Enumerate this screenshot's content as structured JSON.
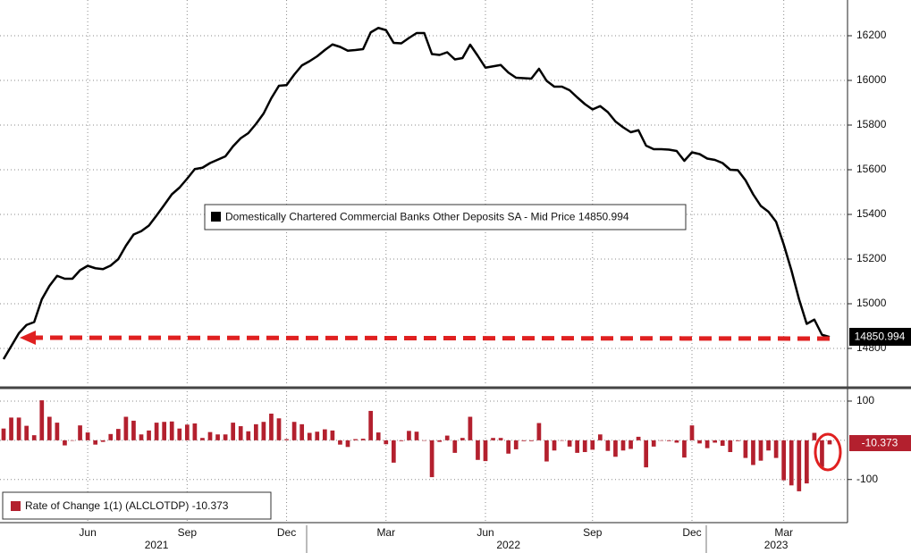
{
  "chart_data": [
    {
      "type": "line",
      "categories": [
        null,
        null,
        null,
        null,
        null,
        null,
        null,
        null,
        null,
        null,
        null,
        "Jun",
        null,
        null,
        null,
        null,
        null,
        null,
        null,
        null,
        null,
        null,
        null,
        null,
        "Sep",
        null,
        null,
        null,
        null,
        null,
        null,
        null,
        null,
        null,
        null,
        null,
        null,
        "Dec",
        null,
        null,
        null,
        null,
        null,
        null,
        null,
        null,
        null,
        null,
        null,
        null,
        "Mar",
        null,
        null,
        null,
        null,
        null,
        null,
        null,
        null,
        null,
        null,
        null,
        null,
        "Jun",
        null,
        null,
        null,
        null,
        null,
        null,
        null,
        null,
        null,
        null,
        null,
        null,
        null,
        "Sep",
        null,
        null,
        null,
        null,
        null,
        null,
        null,
        null,
        null,
        null,
        null,
        null,
        "Dec",
        null,
        null,
        null,
        null,
        null,
        null,
        null,
        null,
        null,
        null,
        null,
        "Mar",
        null,
        null,
        null,
        null,
        null,
        null
      ],
      "years": [
        null,
        null,
        null,
        null,
        null,
        null,
        null,
        null,
        null,
        null,
        null,
        null,
        null,
        null,
        null,
        null,
        null,
        null,
        null,
        null,
        "2021",
        null,
        null,
        null,
        null,
        null,
        null,
        null,
        null,
        null,
        null,
        null,
        null,
        null,
        null,
        null,
        null,
        null,
        null,
        null,
        null,
        null,
        null,
        null,
        null,
        null,
        null,
        null,
        null,
        null,
        null,
        null,
        null,
        null,
        null,
        null,
        null,
        null,
        null,
        null,
        null,
        null,
        null,
        null,
        null,
        null,
        "2022",
        null,
        null,
        null,
        null,
        null,
        null,
        null,
        null,
        null,
        null,
        null,
        null,
        null,
        null,
        null,
        null,
        null,
        null,
        null,
        null,
        null,
        null,
        null,
        null,
        null,
        null,
        null,
        null,
        null,
        null,
        null,
        null,
        null,
        null,
        "2023",
        null,
        null,
        null,
        null,
        null,
        null,
        null
      ],
      "series": [
        {
          "name": "Domestically Chartered Commercial Banks Other Deposits SA - Mid Price",
          "color": "#000000",
          "values": [
            14752,
            14810,
            14868,
            14905,
            14918,
            15020,
            15080,
            15125,
            15112,
            15112,
            15150,
            15170,
            15159,
            15155,
            15171,
            15200,
            15260,
            15310,
            15325,
            15350,
            15395,
            15442,
            15490,
            15520,
            15560,
            15603,
            15609,
            15630,
            15645,
            15660,
            15705,
            15741,
            15764,
            15805,
            15852,
            15920,
            15976,
            15979,
            16026,
            16067,
            16086,
            16108,
            16136,
            16161,
            16150,
            16133,
            16136,
            16140,
            16215,
            16235,
            16225,
            16168,
            16166,
            16190,
            16212,
            16212,
            16118,
            16114,
            16126,
            16094,
            16100,
            16160,
            16110,
            16057,
            16063,
            16069,
            16035,
            16012,
            16010,
            16008,
            16052,
            15998,
            15972,
            15972,
            15956,
            15924,
            15894,
            15870,
            15885,
            15858,
            15816,
            15790,
            15768,
            15777,
            15708,
            15692,
            15692,
            15690,
            15684,
            15640,
            15678,
            15670,
            15650,
            15644,
            15630,
            15600,
            15598,
            15553,
            15490,
            15438,
            15412,
            15367,
            15265,
            15150,
            15020,
            14910,
            14929,
            14861,
            14850.994
          ]
        }
      ],
      "ylim": [
        14632,
        16360
      ],
      "yticks": [
        14800,
        15000,
        15200,
        15400,
        15600,
        15800,
        16000,
        16200
      ],
      "grid": true
    },
    {
      "type": "bar",
      "series": [
        {
          "name": "Rate of Change 1(1) (ALCLOTDP)",
          "color": "#b3202e",
          "values": [
            30,
            58,
            58,
            37,
            13,
            102,
            60,
            45,
            -13,
            0,
            38,
            20,
            -11,
            -4,
            16,
            29,
            60,
            50,
            15,
            25,
            45,
            47,
            48,
            30,
            40,
            43,
            6,
            21,
            15,
            15,
            45,
            36,
            23,
            41,
            47,
            68,
            56,
            3,
            47,
            41,
            19,
            22,
            28,
            25,
            -11,
            -17,
            3,
            4,
            75,
            20,
            -10,
            -57,
            -2,
            24,
            22,
            0,
            -94,
            -4,
            12,
            -32,
            6,
            60,
            -50,
            -53,
            6,
            6,
            -34,
            -23,
            -2,
            -2,
            44,
            -54,
            -26,
            0,
            -16,
            -32,
            -30,
            -24,
            15,
            -27,
            -42,
            -26,
            -22,
            9,
            -69,
            -16,
            0,
            -2,
            -6,
            -44,
            38,
            -8,
            -20,
            -6,
            -14,
            -30,
            -2,
            -45,
            -63,
            -52,
            -26,
            -45,
            -102,
            -115,
            -130,
            -110,
            19,
            -68,
            -10.373
          ]
        }
      ],
      "ylim": [
        -210,
        125
      ],
      "yticks": [
        -100,
        100
      ],
      "grid": true
    }
  ]
}
